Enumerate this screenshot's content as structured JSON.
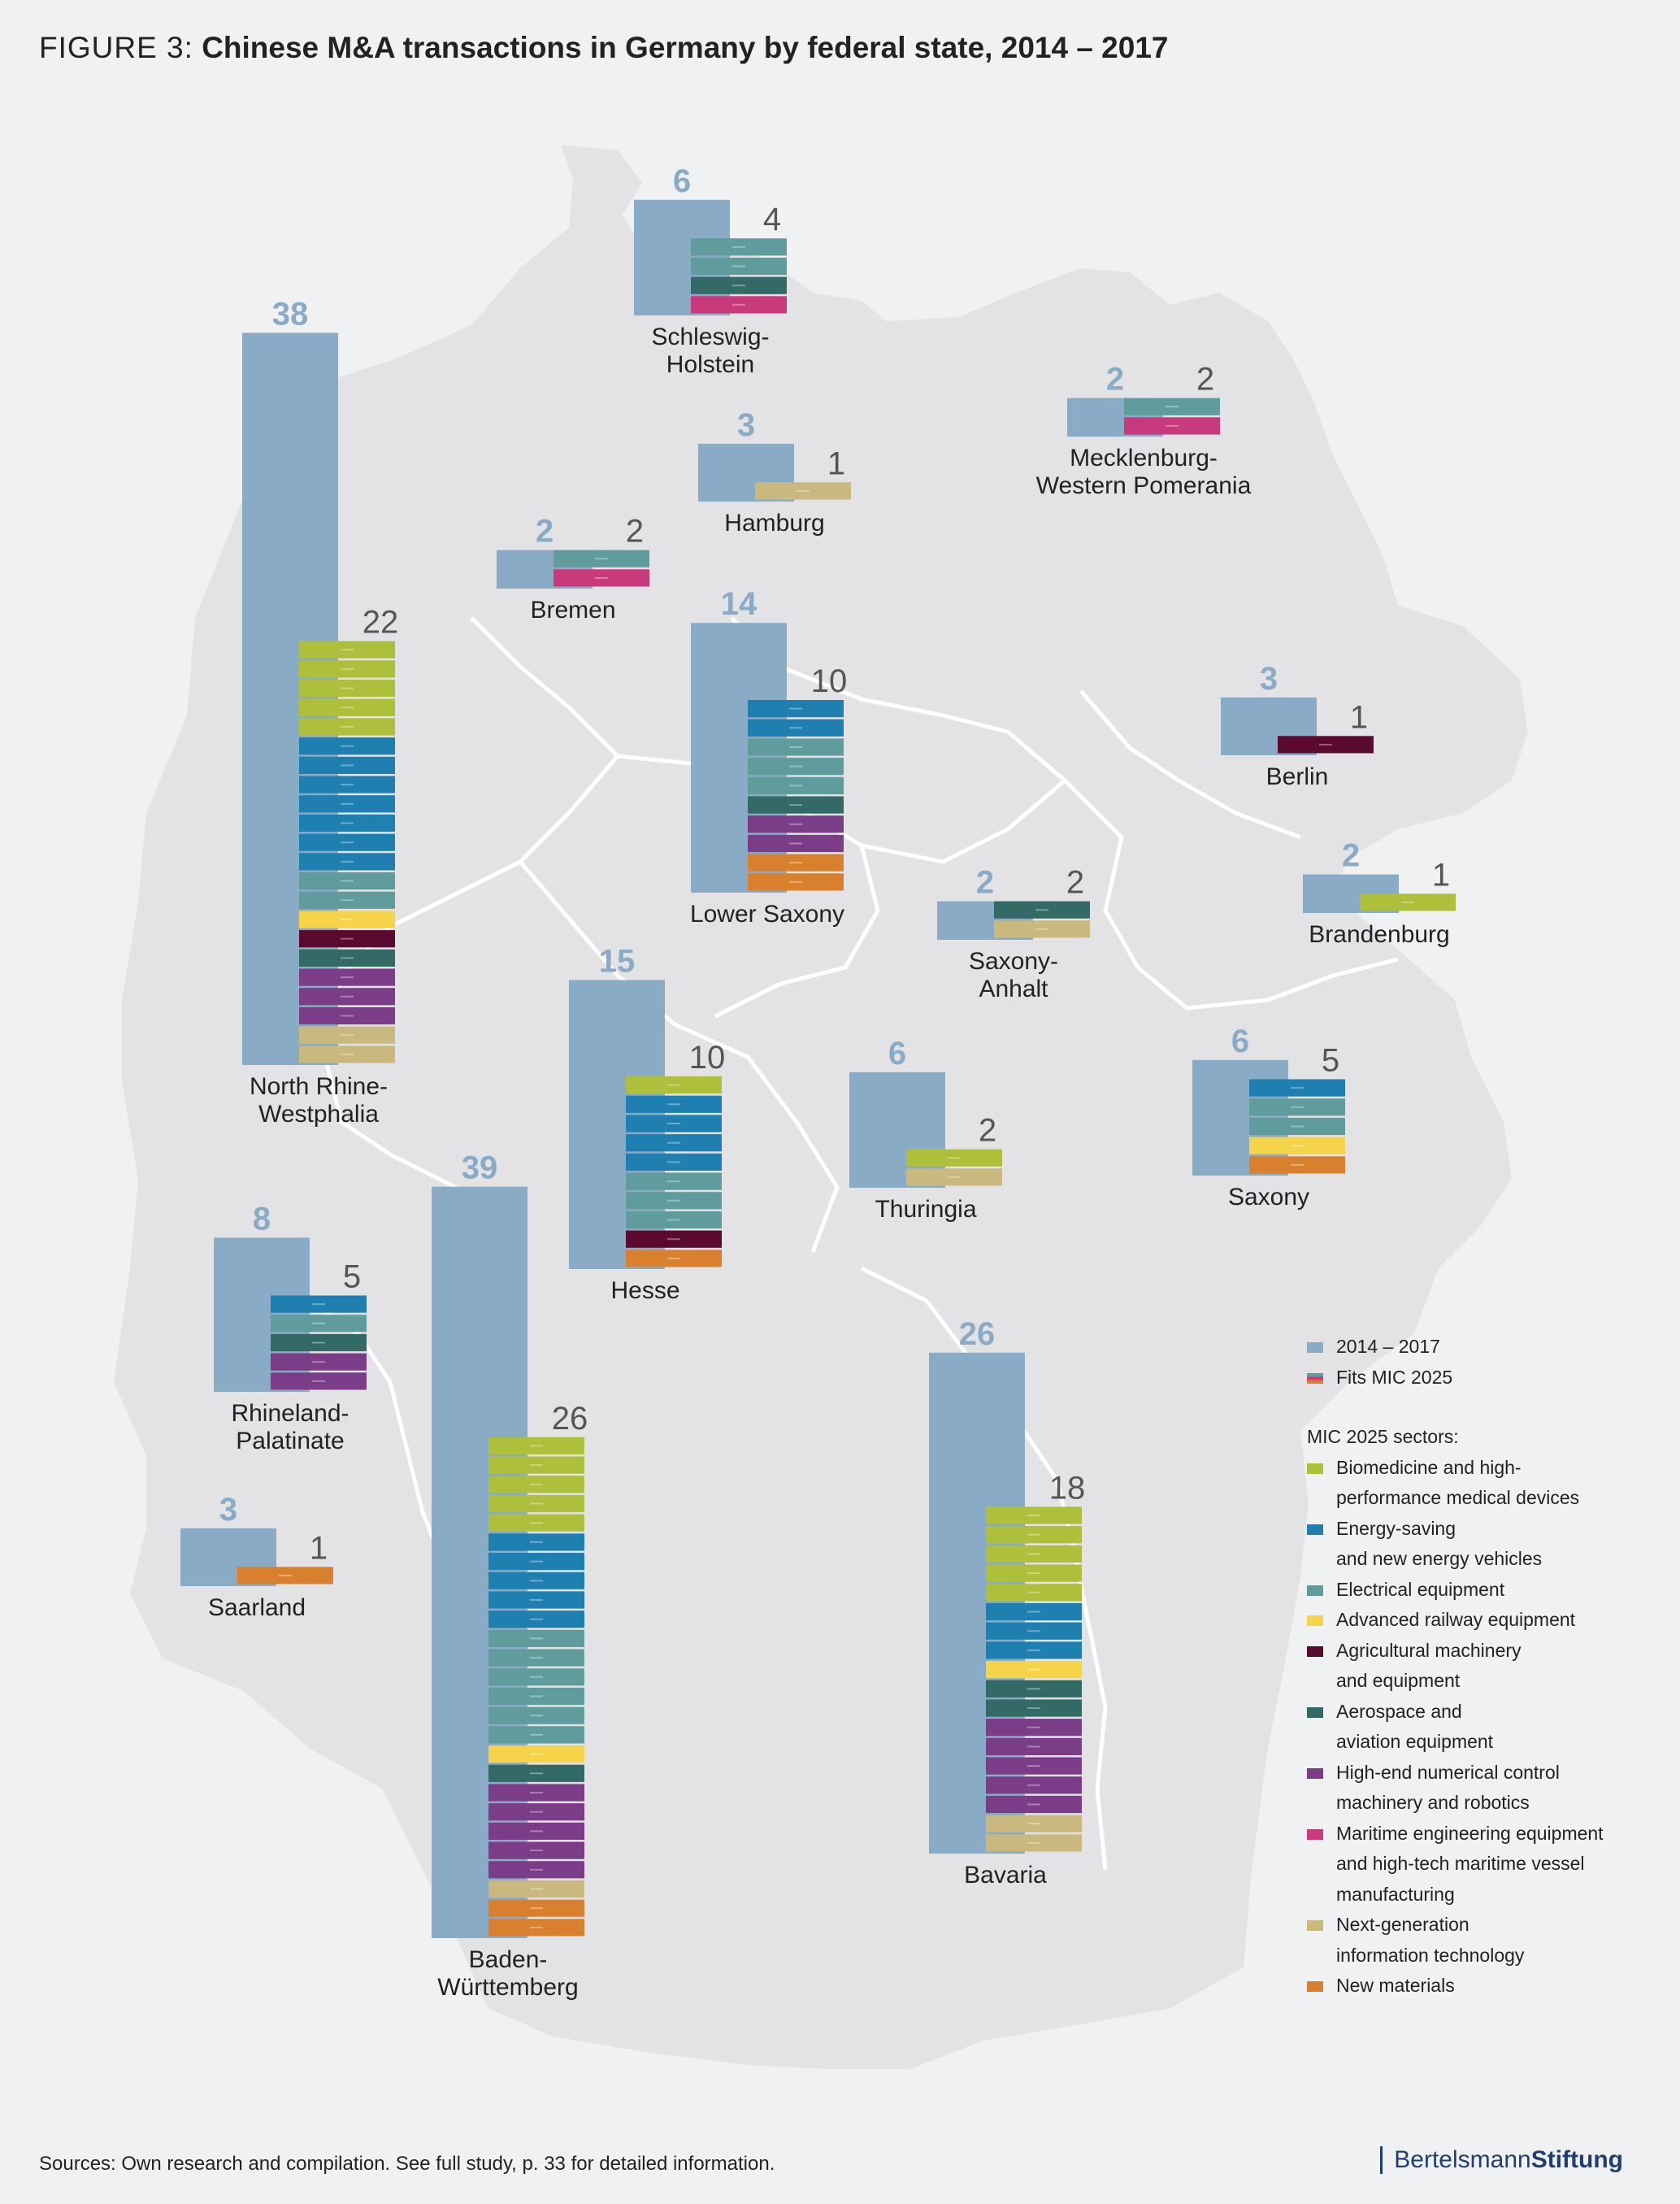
{
  "title": {
    "label": "FIGURE 3:",
    "text": "Chinese M&A transactions in Germany by federal state, 2014 – 2017"
  },
  "colors": {
    "total": "#8aabc6",
    "background": "#f0f1f3",
    "map": "#e3e3e6",
    "sectors": {
      "biomedicine": "#aebf3c",
      "energy": "#1e7fb0",
      "electrical": "#5f9c9b",
      "railway": "#f6d44a",
      "agricultural": "#5a0a2e",
      "aerospace": "#336a66",
      "numerical": "#7b3d87",
      "maritime": "#c93a7d",
      "it": "#c9b97e",
      "materials": "#d9802e"
    }
  },
  "legend": {
    "total_label": "2014 – 2017",
    "fits_label": "Fits MIC 2025",
    "sectors_heading": "MIC 2025 sectors:",
    "items": [
      {
        "key": "biomedicine",
        "label": "Biomedicine and high-\nperformance medical devices"
      },
      {
        "key": "energy",
        "label": "Energy-saving\nand new energy vehicles"
      },
      {
        "key": "electrical",
        "label": "Electrical equipment"
      },
      {
        "key": "railway",
        "label": "Advanced railway equipment"
      },
      {
        "key": "agricultural",
        "label": "Agricultural machinery\nand equipment"
      },
      {
        "key": "aerospace",
        "label": "Aerospace and\naviation equipment"
      },
      {
        "key": "numerical",
        "label": "High-end numerical control\nmachinery and robotics"
      },
      {
        "key": "maritime",
        "label": "Maritime engineering equipment\nand high-tech maritime vessel\nmanufacturing"
      },
      {
        "key": "it",
        "label": "Next-generation\ninformation technology"
      },
      {
        "key": "materials",
        "label": "New materials"
      }
    ]
  },
  "chart_data": {
    "type": "bar",
    "title": "Chinese M&A transactions in Germany by federal state, 2014 – 2017",
    "series": [
      {
        "name": "2014 – 2017"
      },
      {
        "name": "Fits MIC 2025"
      }
    ],
    "states": [
      {
        "name": "Schleswig-\nHolstein",
        "total": 6,
        "mic": 4,
        "sectors": {
          "electrical": 2,
          "aerospace": 1,
          "maritime": 1
        }
      },
      {
        "name": "Mecklenburg-\nWestern Pomerania",
        "total": 2,
        "mic": 2,
        "sectors": {
          "electrical": 1,
          "maritime": 1
        }
      },
      {
        "name": "Hamburg",
        "total": 3,
        "mic": 1,
        "sectors": {
          "it": 1
        }
      },
      {
        "name": "Bremen",
        "total": 2,
        "mic": 2,
        "sectors": {
          "electrical": 1,
          "maritime": 1
        }
      },
      {
        "name": "North Rhine-\nWestphalia",
        "total": 38,
        "mic": 22,
        "sectors": {
          "biomedicine": 5,
          "energy": 7,
          "electrical": 2,
          "railway": 1,
          "agricultural": 1,
          "aerospace": 1,
          "numerical": 3,
          "it": 2
        }
      },
      {
        "name": "Lower Saxony",
        "total": 14,
        "mic": 10,
        "sectors": {
          "energy": 2,
          "electrical": 3,
          "aerospace": 1,
          "numerical": 2,
          "materials": 2
        }
      },
      {
        "name": "Berlin",
        "total": 3,
        "mic": 1,
        "sectors": {
          "agricultural": 1
        }
      },
      {
        "name": "Brandenburg",
        "total": 2,
        "mic": 1,
        "sectors": {
          "biomedicine": 1
        }
      },
      {
        "name": "Saxony-\nAnhalt",
        "total": 2,
        "mic": 2,
        "sectors": {
          "aerospace": 1,
          "it": 1
        }
      },
      {
        "name": "Hesse",
        "total": 15,
        "mic": 10,
        "sectors": {
          "biomedicine": 1,
          "energy": 4,
          "electrical": 3,
          "agricultural": 1,
          "materials": 1
        }
      },
      {
        "name": "Thuringia",
        "total": 6,
        "mic": 2,
        "sectors": {
          "biomedicine": 1,
          "it": 1
        }
      },
      {
        "name": "Saxony",
        "total": 6,
        "mic": 5,
        "sectors": {
          "energy": 1,
          "electrical": 2,
          "railway": 1,
          "materials": 1
        }
      },
      {
        "name": "Rhineland-\nPalatinate",
        "total": 8,
        "mic": 5,
        "sectors": {
          "energy": 1,
          "electrical": 1,
          "aerospace": 1,
          "numerical": 2
        }
      },
      {
        "name": "Saarland",
        "total": 3,
        "mic": 1,
        "sectors": {
          "materials": 1
        }
      },
      {
        "name": "Baden-\nWürttemberg",
        "total": 39,
        "mic": 26,
        "sectors": {
          "biomedicine": 5,
          "energy": 5,
          "electrical": 6,
          "railway": 1,
          "aerospace": 1,
          "numerical": 5,
          "it": 1,
          "materials": 2
        }
      },
      {
        "name": "Bavaria",
        "total": 26,
        "mic": 18,
        "sectors": {
          "biomedicine": 5,
          "energy": 3,
          "railway": 1,
          "aerospace": 2,
          "numerical": 5,
          "it": 2
        }
      }
    ]
  },
  "footer": {
    "source": "Sources: Own research and compilation. See full study, p. 33 for detailed information.",
    "brand_part1": "Bertelsmann",
    "brand_part2": "Stiftung"
  }
}
